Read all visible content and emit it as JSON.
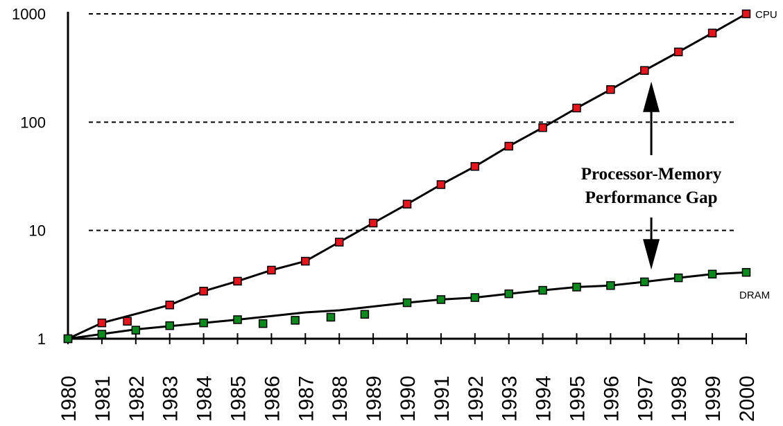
{
  "chart_data": {
    "type": "line",
    "title": "",
    "xlabel": "",
    "ylabel": "",
    "yscale": "log",
    "ylim": [
      1,
      1000
    ],
    "xlim": [
      1980,
      2000
    ],
    "y_ticks": [
      {
        "value": 1,
        "label": "1"
      },
      {
        "value": 10,
        "label": "10"
      },
      {
        "value": 100,
        "label": "100"
      },
      {
        "value": 1000,
        "label": "1000"
      }
    ],
    "x": [
      1980,
      1981,
      1982,
      1983,
      1984,
      1985,
      1986,
      1987,
      1988,
      1989,
      1990,
      1991,
      1992,
      1993,
      1994,
      1995,
      1996,
      1997,
      1998,
      1999,
      2000
    ],
    "x_tick_labels": [
      "1980",
      "1981",
      "1982",
      "1983",
      "1984",
      "1985",
      "1986",
      "1987",
      "1988",
      "1989",
      "1990",
      "1991",
      "1992",
      "1993",
      "1994",
      "1995",
      "1996",
      "1997",
      "1998",
      "1999",
      "2000"
    ],
    "gridlines": "horizontal dashed at 10, 100, 1000",
    "series": [
      {
        "name": "CPU",
        "color": "#e8141c",
        "line_x": [
          1980,
          1981,
          1983,
          1984,
          1985,
          1986,
          1987,
          1988,
          1989,
          1990,
          1991,
          1992,
          1993,
          1994,
          1995,
          1996,
          1997,
          1998,
          1999,
          2000
        ],
        "line_y": [
          1.0,
          1.4,
          2.05,
          2.75,
          3.4,
          4.3,
          5.2,
          7.8,
          11.7,
          17.5,
          26.5,
          39,
          60,
          89,
          135,
          200,
          300,
          445,
          665,
          1000
        ],
        "markers": [
          {
            "x": 1980,
            "y": 1.0
          },
          {
            "x": 1981,
            "y": 1.4
          },
          {
            "x": 1981.75,
            "y": 1.45
          },
          {
            "x": 1983,
            "y": 2.05
          },
          {
            "x": 1984,
            "y": 2.75
          },
          {
            "x": 1985,
            "y": 3.4
          },
          {
            "x": 1986,
            "y": 4.3
          },
          {
            "x": 1987,
            "y": 5.2
          },
          {
            "x": 1988,
            "y": 7.8
          },
          {
            "x": 1989,
            "y": 11.7
          },
          {
            "x": 1990,
            "y": 17.5
          },
          {
            "x": 1991,
            "y": 26.5
          },
          {
            "x": 1992,
            "y": 39
          },
          {
            "x": 1993,
            "y": 60
          },
          {
            "x": 1994,
            "y": 89
          },
          {
            "x": 1995,
            "y": 135
          },
          {
            "x": 1996,
            "y": 200
          },
          {
            "x": 1997,
            "y": 300
          },
          {
            "x": 1998,
            "y": 445
          },
          {
            "x": 1999,
            "y": 665
          },
          {
            "x": 2000,
            "y": 1000
          }
        ]
      },
      {
        "name": "DRAM",
        "color": "#0c8a1e",
        "line_x": [
          1980,
          1982,
          1985,
          1987,
          1988,
          1990,
          1991,
          1992,
          1993,
          1994,
          1995,
          1996,
          1997,
          1998,
          1999,
          2000
        ],
        "line_y": [
          1.0,
          1.22,
          1.5,
          1.75,
          1.83,
          2.15,
          2.3,
          2.4,
          2.6,
          2.8,
          3.0,
          3.1,
          3.35,
          3.65,
          3.95,
          4.1
        ],
        "markers": [
          {
            "x": 1980,
            "y": 1.0
          },
          {
            "x": 1981,
            "y": 1.1
          },
          {
            "x": 1982,
            "y": 1.2
          },
          {
            "x": 1983,
            "y": 1.32
          },
          {
            "x": 1984,
            "y": 1.4
          },
          {
            "x": 1985,
            "y": 1.5
          },
          {
            "x": 1985.75,
            "y": 1.38
          },
          {
            "x": 1986.7,
            "y": 1.48
          },
          {
            "x": 1987.75,
            "y": 1.58
          },
          {
            "x": 1988.75,
            "y": 1.68
          },
          {
            "x": 1990,
            "y": 2.15
          },
          {
            "x": 1991,
            "y": 2.3
          },
          {
            "x": 1992,
            "y": 2.4
          },
          {
            "x": 1993,
            "y": 2.6
          },
          {
            "x": 1994,
            "y": 2.8
          },
          {
            "x": 1995,
            "y": 3.0
          },
          {
            "x": 1996,
            "y": 3.1
          },
          {
            "x": 1997,
            "y": 3.35
          },
          {
            "x": 1998,
            "y": 3.65
          },
          {
            "x": 1999,
            "y": 3.95
          },
          {
            "x": 2000,
            "y": 4.1
          }
        ]
      }
    ],
    "annotation": {
      "lines": [
        "Processor-Memory",
        "Performance Gap"
      ],
      "arrow": "double-headed vertical between series at 1997.5"
    }
  }
}
